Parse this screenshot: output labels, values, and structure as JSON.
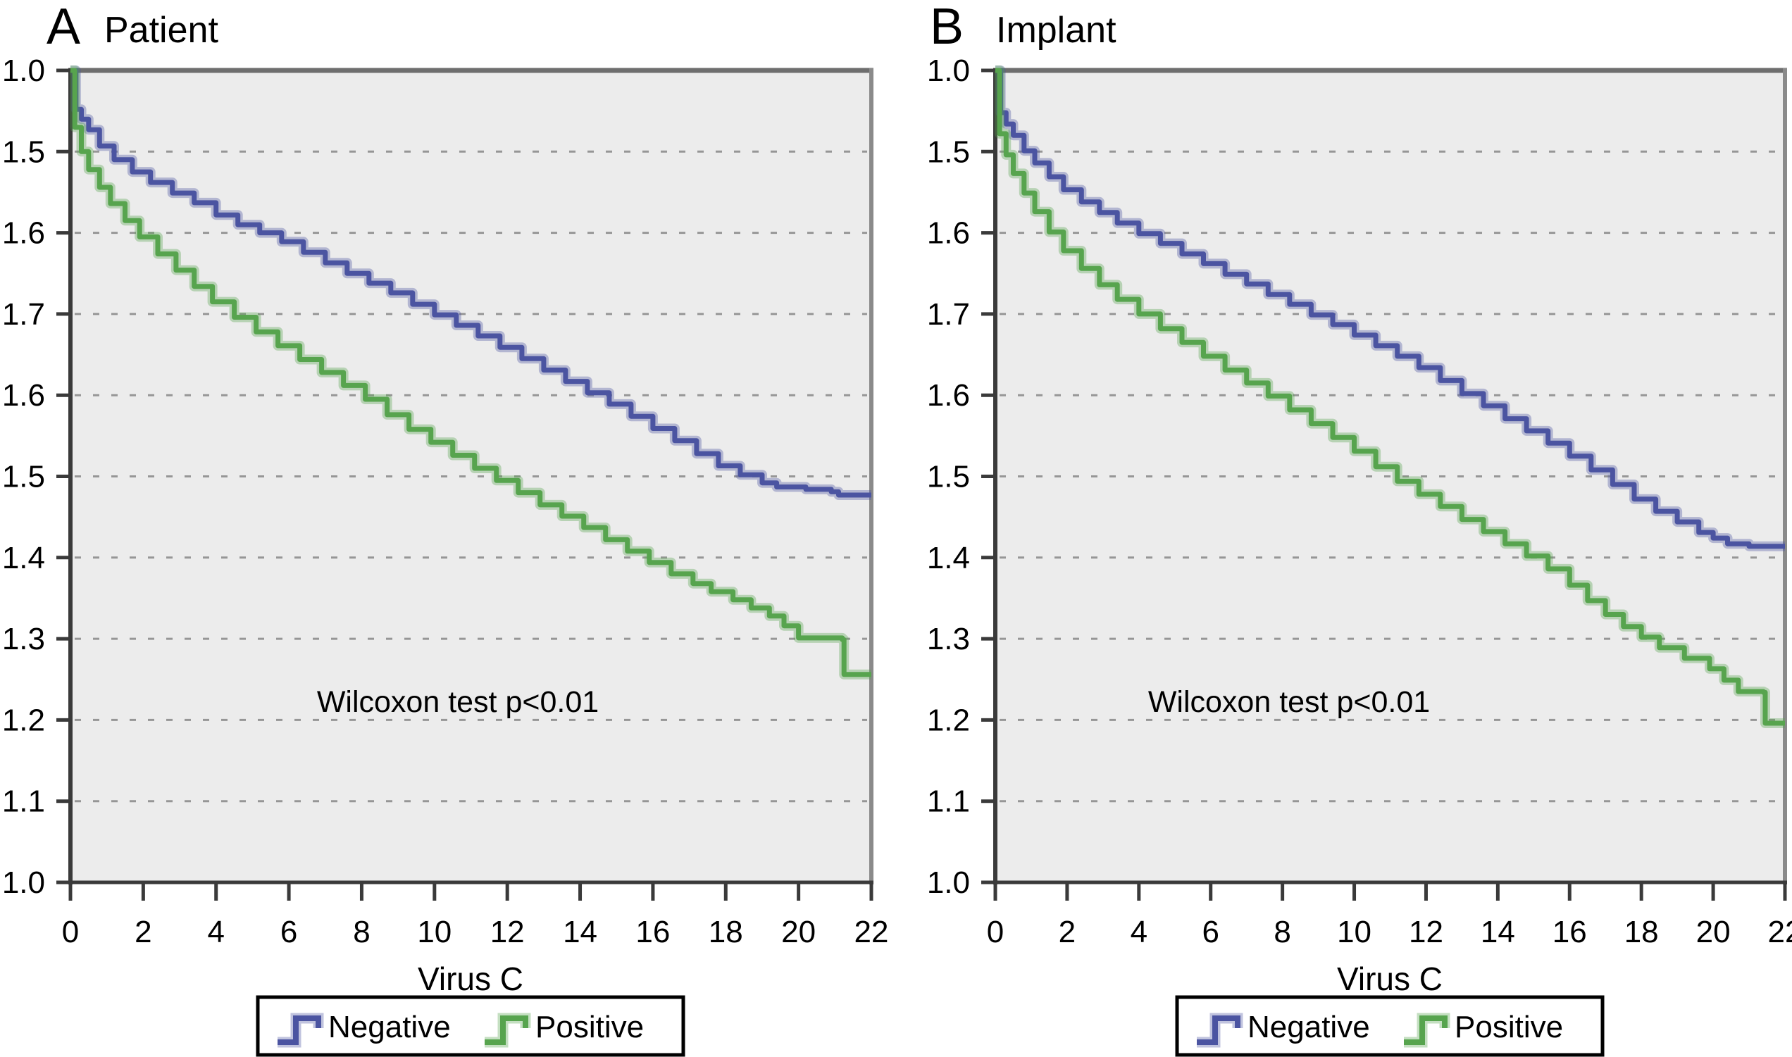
{
  "figure": {
    "background_color": "#ffffff",
    "plot_background_color": "#ececec",
    "grid_color": "#969696",
    "axis_color": "#3a3a3a",
    "frame_color": "#757575",
    "panels": [
      {
        "letter": "A",
        "title": "Patient",
        "annotation": "Wilcoxon test p<0.01",
        "xlabel": "Virus C",
        "y_tick_labels": [
          "1.0",
          "1.5",
          "1.6",
          "1.7",
          "1.6",
          "1.5",
          "1.4",
          "1.3",
          "1.2",
          "1.1",
          "1.0"
        ],
        "x_tick_labels": [
          "0",
          "2",
          "4",
          "6",
          "8",
          "10",
          "12",
          "14",
          "16",
          "18",
          "20",
          "22"
        ],
        "legend": [
          {
            "label": "Negative",
            "color": "#4b54a1"
          },
          {
            "label": "Positive",
            "color": "#57a44e"
          }
        ]
      },
      {
        "letter": "B",
        "title": "Implant",
        "annotation": "Wilcoxon test p<0.01",
        "xlabel": "Virus C",
        "y_tick_labels": [
          "1.0",
          "1.5",
          "1.6",
          "1.7",
          "1.6",
          "1.5",
          "1.4",
          "1.3",
          "1.2",
          "1.1",
          "1.0"
        ],
        "x_tick_labels": [
          "0",
          "2",
          "4",
          "6",
          "8",
          "10",
          "12",
          "14",
          "16",
          "18",
          "20",
          "22"
        ],
        "legend": [
          {
            "label": "Negative",
            "color": "#4b54a1"
          },
          {
            "label": "Positive",
            "color": "#57a44e"
          }
        ]
      }
    ]
  },
  "chart_data": [
    {
      "type": "line",
      "subtype": "kaplan-meier-step",
      "panel": "A",
      "title": "Patient",
      "xlabel": "Virus C",
      "annotation": "Wilcoxon test p<0.01",
      "x_range": [
        0,
        22
      ],
      "x_tick_labels": [
        "0",
        "2",
        "4",
        "6",
        "8",
        "10",
        "12",
        "14",
        "16",
        "18",
        "20",
        "22"
      ],
      "y_tick_labels_displayed_top_to_bottom": [
        "1.0",
        "1.5",
        "1.6",
        "1.7",
        "1.6",
        "1.5",
        "1.4",
        "1.3",
        "1.2",
        "1.1",
        "1.0"
      ],
      "y_scale": "axis fraction: top tick = 1.0, bottom tick = 0.0, 11 evenly spaced ticks",
      "grid": "horizontal dashed gridlines at each interior tick",
      "legend_position": "below plot, boxed",
      "series": [
        {
          "name": "Negative",
          "color": "#4b54a1",
          "points": [
            [
              0,
              1.0
            ],
            [
              0.15,
              1.0
            ],
            [
              0.15,
              0.952
            ],
            [
              0.3,
              0.94
            ],
            [
              0.5,
              0.927
            ],
            [
              0.8,
              0.907
            ],
            [
              1.2,
              0.89
            ],
            [
              1.7,
              0.875
            ],
            [
              2.2,
              0.862
            ],
            [
              2.8,
              0.849
            ],
            [
              3.4,
              0.837
            ],
            [
              4.0,
              0.822
            ],
            [
              4.6,
              0.81
            ],
            [
              5.2,
              0.8
            ],
            [
              5.8,
              0.789
            ],
            [
              6.4,
              0.776
            ],
            [
              7.0,
              0.763
            ],
            [
              7.6,
              0.75
            ],
            [
              8.2,
              0.738
            ],
            [
              8.8,
              0.726
            ],
            [
              9.4,
              0.712
            ],
            [
              10.0,
              0.699
            ],
            [
              10.6,
              0.686
            ],
            [
              11.2,
              0.673
            ],
            [
              11.8,
              0.659
            ],
            [
              12.4,
              0.645
            ],
            [
              13.0,
              0.631
            ],
            [
              13.6,
              0.617
            ],
            [
              14.2,
              0.603
            ],
            [
              14.8,
              0.589
            ],
            [
              15.4,
              0.574
            ],
            [
              16.0,
              0.559
            ],
            [
              16.6,
              0.544
            ],
            [
              17.2,
              0.528
            ],
            [
              17.8,
              0.513
            ],
            [
              18.4,
              0.502
            ],
            [
              19.0,
              0.492
            ],
            [
              19.4,
              0.487
            ],
            [
              20.2,
              0.484
            ],
            [
              20.9,
              0.481
            ],
            [
              21.1,
              0.477
            ],
            [
              22,
              0.477
            ]
          ]
        },
        {
          "name": "Positive",
          "color": "#57a44e",
          "points": [
            [
              0,
              1.0
            ],
            [
              0.12,
              1.0
            ],
            [
              0.12,
              0.93
            ],
            [
              0.3,
              0.9
            ],
            [
              0.5,
              0.878
            ],
            [
              0.8,
              0.856
            ],
            [
              1.1,
              0.836
            ],
            [
              1.5,
              0.815
            ],
            [
              1.9,
              0.795
            ],
            [
              2.4,
              0.774
            ],
            [
              2.9,
              0.754
            ],
            [
              3.4,
              0.734
            ],
            [
              3.9,
              0.715
            ],
            [
              4.5,
              0.696
            ],
            [
              5.1,
              0.678
            ],
            [
              5.7,
              0.661
            ],
            [
              6.3,
              0.644
            ],
            [
              6.9,
              0.628
            ],
            [
              7.5,
              0.612
            ],
            [
              8.1,
              0.595
            ],
            [
              8.7,
              0.576
            ],
            [
              9.3,
              0.558
            ],
            [
              9.9,
              0.542
            ],
            [
              10.5,
              0.526
            ],
            [
              11.1,
              0.51
            ],
            [
              11.7,
              0.495
            ],
            [
              12.3,
              0.48
            ],
            [
              12.9,
              0.465
            ],
            [
              13.5,
              0.451
            ],
            [
              14.1,
              0.437
            ],
            [
              14.7,
              0.422
            ],
            [
              15.3,
              0.408
            ],
            [
              15.9,
              0.394
            ],
            [
              16.5,
              0.38
            ],
            [
              17.1,
              0.368
            ],
            [
              17.6,
              0.358
            ],
            [
              18.2,
              0.348
            ],
            [
              18.7,
              0.338
            ],
            [
              19.2,
              0.328
            ],
            [
              19.6,
              0.316
            ],
            [
              20.0,
              0.301
            ],
            [
              21.2,
              0.299
            ],
            [
              21.25,
              0.256
            ],
            [
              22,
              0.256
            ]
          ]
        }
      ]
    },
    {
      "type": "line",
      "subtype": "kaplan-meier-step",
      "panel": "B",
      "title": "Implant",
      "xlabel": "Virus C",
      "annotation": "Wilcoxon test p<0.01",
      "x_range": [
        0,
        22
      ],
      "x_tick_labels": [
        "0",
        "2",
        "4",
        "6",
        "8",
        "10",
        "12",
        "14",
        "16",
        "18",
        "20",
        "22"
      ],
      "y_tick_labels_displayed_top_to_bottom": [
        "1.0",
        "1.5",
        "1.6",
        "1.7",
        "1.6",
        "1.5",
        "1.4",
        "1.3",
        "1.2",
        "1.1",
        "1.0"
      ],
      "y_scale": "axis fraction: top tick = 1.0, bottom tick = 0.0, 11 evenly spaced ticks",
      "grid": "horizontal dashed gridlines at each interior tick",
      "legend_position": "below plot, boxed",
      "series": [
        {
          "name": "Negative",
          "color": "#4b54a1",
          "points": [
            [
              0,
              1.0
            ],
            [
              0.15,
              1.0
            ],
            [
              0.15,
              0.948
            ],
            [
              0.3,
              0.934
            ],
            [
              0.5,
              0.92
            ],
            [
              0.8,
              0.901
            ],
            [
              1.1,
              0.886
            ],
            [
              1.5,
              0.869
            ],
            [
              1.9,
              0.853
            ],
            [
              2.4,
              0.838
            ],
            [
              2.9,
              0.825
            ],
            [
              3.4,
              0.812
            ],
            [
              4.0,
              0.799
            ],
            [
              4.6,
              0.787
            ],
            [
              5.2,
              0.774
            ],
            [
              5.8,
              0.762
            ],
            [
              6.4,
              0.749
            ],
            [
              7.0,
              0.737
            ],
            [
              7.6,
              0.724
            ],
            [
              8.2,
              0.712
            ],
            [
              8.8,
              0.699
            ],
            [
              9.4,
              0.687
            ],
            [
              10.0,
              0.674
            ],
            [
              10.6,
              0.661
            ],
            [
              11.2,
              0.648
            ],
            [
              11.8,
              0.634
            ],
            [
              12.4,
              0.618
            ],
            [
              13.0,
              0.602
            ],
            [
              13.6,
              0.587
            ],
            [
              14.2,
              0.571
            ],
            [
              14.8,
              0.556
            ],
            [
              15.4,
              0.541
            ],
            [
              16.0,
              0.525
            ],
            [
              16.6,
              0.508
            ],
            [
              17.2,
              0.49
            ],
            [
              17.8,
              0.472
            ],
            [
              18.4,
              0.457
            ],
            [
              19.0,
              0.444
            ],
            [
              19.6,
              0.431
            ],
            [
              20.0,
              0.424
            ],
            [
              20.4,
              0.417
            ],
            [
              21.0,
              0.414
            ],
            [
              22,
              0.414
            ]
          ]
        },
        {
          "name": "Positive",
          "color": "#57a44e",
          "points": [
            [
              0,
              1.0
            ],
            [
              0.12,
              1.0
            ],
            [
              0.12,
              0.922
            ],
            [
              0.3,
              0.896
            ],
            [
              0.5,
              0.873
            ],
            [
              0.8,
              0.849
            ],
            [
              1.1,
              0.826
            ],
            [
              1.5,
              0.801
            ],
            [
              1.9,
              0.778
            ],
            [
              2.4,
              0.756
            ],
            [
              2.9,
              0.736
            ],
            [
              3.4,
              0.718
            ],
            [
              4.0,
              0.7
            ],
            [
              4.6,
              0.682
            ],
            [
              5.2,
              0.665
            ],
            [
              5.8,
              0.648
            ],
            [
              6.4,
              0.631
            ],
            [
              7.0,
              0.615
            ],
            [
              7.6,
              0.599
            ],
            [
              8.2,
              0.582
            ],
            [
              8.8,
              0.565
            ],
            [
              9.4,
              0.548
            ],
            [
              10.0,
              0.531
            ],
            [
              10.6,
              0.512
            ],
            [
              11.2,
              0.494
            ],
            [
              11.8,
              0.478
            ],
            [
              12.4,
              0.463
            ],
            [
              13.0,
              0.447
            ],
            [
              13.6,
              0.432
            ],
            [
              14.2,
              0.417
            ],
            [
              14.8,
              0.402
            ],
            [
              15.4,
              0.386
            ],
            [
              16.0,
              0.366
            ],
            [
              16.5,
              0.347
            ],
            [
              17.0,
              0.33
            ],
            [
              17.5,
              0.315
            ],
            [
              18.0,
              0.302
            ],
            [
              18.5,
              0.289
            ],
            [
              19.2,
              0.276
            ],
            [
              19.9,
              0.263
            ],
            [
              20.3,
              0.249
            ],
            [
              20.7,
              0.235
            ],
            [
              21.4,
              0.234
            ],
            [
              21.45,
              0.196
            ],
            [
              22,
              0.196
            ]
          ]
        }
      ]
    }
  ]
}
